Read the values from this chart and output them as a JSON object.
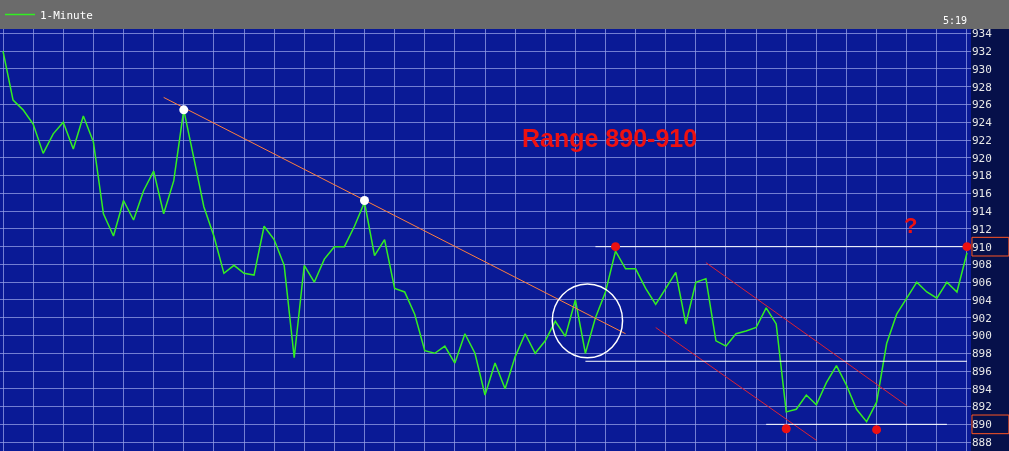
{
  "chart_data": {
    "type": "line",
    "categories": [
      null,
      null,
      null,
      null,
      null,
      null,
      null,
      null,
      null,
      null,
      null,
      null,
      null,
      null,
      null,
      null,
      null,
      null,
      null,
      null,
      null,
      null,
      null,
      null,
      null,
      null,
      null,
      null,
      null,
      null,
      null,
      null,
      null,
      null,
      null,
      null,
      null,
      null,
      null,
      null,
      null,
      null,
      null,
      null,
      null,
      null,
      null,
      null,
      null,
      null,
      null,
      null,
      null,
      null,
      null,
      null,
      null,
      null,
      null,
      null,
      null,
      null,
      null,
      null,
      null,
      null,
      null,
      null,
      null,
      null,
      null,
      null,
      null,
      null,
      null,
      null,
      null,
      null,
      null,
      null,
      null,
      null,
      null,
      null,
      null,
      null,
      null,
      null,
      null,
      null,
      null,
      null,
      null,
      null,
      null,
      null,
      null
    ],
    "series": [
      {
        "name": "1-Minute",
        "color": "#33ee22",
        "values": [
          932,
          926.5,
          925.4,
          923.8,
          920.5,
          922.7,
          924,
          921,
          924.7,
          921.8,
          913.7,
          911.2,
          915.2,
          913,
          916.3,
          918.5,
          913.7,
          917.4,
          925.4,
          920,
          914.5,
          911.2,
          907,
          907.9,
          907,
          906.8,
          912.3,
          910.8,
          907.9,
          897.5,
          907.9,
          906,
          908.6,
          910,
          910,
          912.3,
          915,
          909,
          910.8,
          905.3,
          904.9,
          902.4,
          898.3,
          898,
          898.8,
          896.9,
          900.2,
          898,
          893.3,
          896.9,
          894,
          897.6,
          900.2,
          898,
          899.4,
          901.6,
          899.9,
          904,
          898,
          902,
          904.9,
          909.5,
          907.5,
          907.5,
          905.3,
          903.5,
          905.3,
          907.1,
          901.3,
          906,
          906.4,
          899.4,
          898.8,
          900.2,
          900.5,
          900.9,
          903.1,
          901.3,
          891.4,
          891.7,
          893.3,
          892.2,
          894.7,
          896.6,
          894.4,
          891.7,
          890.3,
          892.5,
          899.1,
          902.4,
          904.2,
          906,
          904.9,
          904.2,
          906,
          904.9,
          909.3
        ]
      },
      {
        "type": "line",
        "color": "#ff7f3f",
        "values": [
          null,
          null,
          null,
          null,
          null,
          null,
          null,
          null,
          null,
          null,
          null,
          null,
          null,
          null,
          null,
          null,
          926.8,
          null,
          null,
          null,
          null,
          null,
          null,
          null,
          null,
          null,
          null,
          null,
          null,
          null,
          null,
          null,
          null,
          null,
          null,
          null,
          null,
          null,
          null,
          null,
          null,
          null,
          null,
          null,
          null,
          null,
          null,
          null,
          null,
          null,
          null,
          null,
          null,
          null,
          null,
          null,
          null,
          null,
          null,
          null,
          null,
          null,
          900.2,
          null,
          null,
          null,
          null,
          null,
          null,
          null,
          null,
          null,
          null,
          null,
          null,
          null,
          null,
          null,
          null,
          null,
          null,
          null,
          null,
          null,
          null,
          null,
          null,
          null,
          null,
          null,
          null,
          null,
          null,
          null,
          null,
          null,
          null
        ]
      },
      {
        "type": "line",
        "color": "#dd2233",
        "values": [
          null,
          null,
          null,
          null,
          null,
          null,
          null,
          null,
          null,
          null,
          null,
          null,
          null,
          null,
          null,
          null,
          null,
          null,
          null,
          null,
          null,
          null,
          null,
          null,
          null,
          null,
          null,
          null,
          null,
          null,
          null,
          null,
          null,
          null,
          null,
          null,
          null,
          null,
          null,
          null,
          null,
          null,
          null,
          null,
          null,
          null,
          null,
          null,
          null,
          null,
          null,
          null,
          null,
          null,
          null,
          null,
          null,
          null,
          null,
          null,
          null,
          null,
          null,
          null,
          null,
          null,
          null,
          null,
          null,
          null,
          908.2,
          null,
          null,
          null,
          null,
          null,
          null,
          null,
          null,
          null,
          null,
          null,
          null,
          null,
          null,
          null,
          null,
          null,
          null,
          null,
          892.1,
          null,
          null,
          null,
          null,
          null,
          null
        ]
      },
      {
        "type": "line",
        "color": "#dd2233",
        "values": [
          null,
          null,
          null,
          null,
          null,
          null,
          null,
          null,
          null,
          null,
          null,
          null,
          null,
          null,
          null,
          null,
          null,
          null,
          null,
          null,
          null,
          null,
          null,
          null,
          null,
          null,
          null,
          null,
          null,
          null,
          null,
          null,
          null,
          null,
          null,
          null,
          null,
          null,
          null,
          null,
          null,
          null,
          null,
          null,
          null,
          null,
          null,
          null,
          null,
          null,
          null,
          null,
          null,
          null,
          null,
          null,
          null,
          null,
          null,
          null,
          null,
          null,
          null,
          null,
          null,
          900.9,
          null,
          null,
          null,
          null,
          null,
          null,
          null,
          null,
          null,
          null,
          null,
          null,
          null,
          null,
          null,
          888.2,
          null,
          null,
          null,
          null,
          null,
          null,
          null,
          null,
          null,
          null,
          null,
          null,
          null,
          null,
          null
        ]
      },
      {
        "type": "line",
        "color": "#ffffff",
        "values": [
          null,
          null,
          null,
          null,
          null,
          null,
          null,
          null,
          null,
          null,
          null,
          null,
          null,
          null,
          null,
          null,
          null,
          null,
          null,
          null,
          null,
          null,
          null,
          null,
          null,
          null,
          null,
          null,
          null,
          null,
          null,
          null,
          null,
          null,
          null,
          null,
          null,
          null,
          null,
          null,
          null,
          null,
          null,
          null,
          null,
          null,
          null,
          null,
          null,
          null,
          null,
          null,
          null,
          null,
          null,
          null,
          null,
          null,
          null,
          910,
          null,
          null,
          null,
          null,
          null,
          null,
          null,
          null,
          null,
          null,
          null,
          null,
          null,
          null,
          null,
          null,
          null,
          null,
          null,
          null,
          null,
          null,
          null,
          null,
          null,
          null,
          null,
          null,
          null,
          null,
          null,
          null,
          null,
          null,
          null,
          null,
          910
        ]
      },
      {
        "type": "line",
        "color": "#ffffff",
        "values": [
          null,
          null,
          null,
          null,
          null,
          null,
          null,
          null,
          null,
          null,
          null,
          null,
          null,
          null,
          null,
          null,
          null,
          null,
          null,
          null,
          null,
          null,
          null,
          null,
          null,
          null,
          null,
          null,
          null,
          null,
          null,
          null,
          null,
          null,
          null,
          null,
          null,
          null,
          null,
          null,
          null,
          null,
          null,
          null,
          null,
          null,
          null,
          null,
          null,
          null,
          null,
          null,
          null,
          null,
          null,
          null,
          null,
          null,
          897.1,
          null,
          null,
          null,
          null,
          null,
          null,
          null,
          null,
          null,
          null,
          null,
          null,
          null,
          null,
          null,
          null,
          null,
          null,
          null,
          null,
          null,
          null,
          null,
          null,
          null,
          null,
          null,
          null,
          null,
          null,
          null,
          null,
          null,
          null,
          null,
          null,
          null,
          897.1
        ]
      },
      {
        "type": "line",
        "color": "#ffffff",
        "values": [
          null,
          null,
          null,
          null,
          null,
          null,
          null,
          null,
          null,
          null,
          null,
          null,
          null,
          null,
          null,
          null,
          null,
          null,
          null,
          null,
          null,
          null,
          null,
          null,
          null,
          null,
          null,
          null,
          null,
          null,
          null,
          null,
          null,
          null,
          null,
          null,
          null,
          null,
          null,
          null,
          null,
          null,
          null,
          null,
          null,
          null,
          null,
          null,
          null,
          null,
          null,
          null,
          null,
          null,
          null,
          null,
          null,
          null,
          null,
          null,
          null,
          null,
          null,
          null,
          null,
          null,
          null,
          null,
          null,
          null,
          null,
          null,
          null,
          null,
          null,
          null,
          890,
          null,
          null,
          null,
          null,
          null,
          null,
          null,
          null,
          null,
          null,
          null,
          null,
          null,
          null,
          null,
          null,
          null,
          890,
          null,
          null
        ]
      },
      {
        "type": "scatter",
        "color": "#ffffff",
        "marker": "circle",
        "values": [
          null,
          null,
          null,
          null,
          null,
          null,
          null,
          null,
          null,
          null,
          null,
          null,
          null,
          null,
          null,
          null,
          null,
          null,
          925.4,
          null,
          null,
          null,
          null,
          null,
          null,
          null,
          null,
          null,
          null,
          null,
          null,
          null,
          null,
          null,
          null,
          null,
          915.2,
          null,
          null,
          null,
          null,
          null,
          null,
          null,
          null,
          null,
          null,
          null,
          null,
          null,
          null,
          null,
          null,
          null,
          null,
          null,
          null,
          null,
          null,
          null,
          null,
          null,
          null,
          null,
          null,
          null,
          null,
          null,
          null,
          null,
          null,
          null,
          null,
          null,
          null,
          null,
          null,
          null,
          null,
          null,
          null,
          null,
          null,
          null,
          null,
          null,
          null,
          null,
          null,
          null,
          null,
          null,
          null,
          null,
          null,
          null,
          null
        ]
      },
      {
        "type": "scatter",
        "color": "#ee1111",
        "marker": "circle",
        "values": [
          null,
          null,
          null,
          null,
          null,
          null,
          null,
          null,
          null,
          null,
          null,
          null,
          null,
          null,
          null,
          null,
          null,
          null,
          null,
          null,
          null,
          null,
          null,
          null,
          null,
          null,
          null,
          null,
          null,
          null,
          null,
          null,
          null,
          null,
          null,
          null,
          null,
          null,
          null,
          null,
          null,
          null,
          null,
          null,
          null,
          null,
          null,
          null,
          null,
          null,
          null,
          null,
          null,
          null,
          null,
          null,
          null,
          null,
          null,
          null,
          null,
          910,
          null,
          null,
          null,
          null,
          null,
          null,
          null,
          null,
          null,
          null,
          null,
          null,
          null,
          null,
          null,
          null,
          889.5,
          null,
          null,
          null,
          null,
          null,
          null,
          null,
          null,
          889.4,
          null,
          null,
          null,
          null,
          null,
          null,
          null,
          null,
          910
        ]
      }
    ],
    "ylim": [
      887,
      934.5
    ],
    "yticks": [
      888,
      890,
      892,
      894,
      896,
      898,
      900,
      902,
      904,
      906,
      908,
      910,
      912,
      914,
      916,
      918,
      920,
      922,
      924,
      926,
      928,
      930,
      932,
      934
    ],
    "tick_labels": "y",
    "grid": true,
    "legend": "top left",
    "annotations": [
      "Range 890-910",
      "?",
      "5:19"
    ]
  }
}
